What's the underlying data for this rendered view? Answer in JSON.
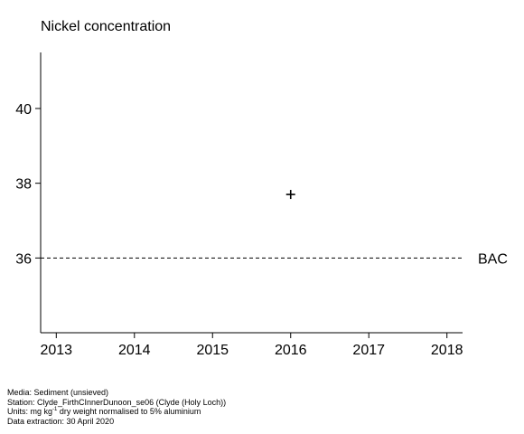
{
  "chart_data": {
    "type": "scatter",
    "title": "Nickel concentration",
    "xlabel": "",
    "ylabel": "",
    "xlim": [
      2012.8,
      2018.2
    ],
    "ylim": [
      34,
      41.5
    ],
    "x_ticks": [
      2013,
      2014,
      2015,
      2016,
      2017,
      2018
    ],
    "y_ticks": [
      36,
      38,
      40
    ],
    "points": [
      {
        "x": 2016,
        "y": 37.7,
        "marker": "plus"
      }
    ],
    "reference_lines": [
      {
        "label": "BAC",
        "y": 36,
        "style": "dashed"
      }
    ],
    "grid": false,
    "legend": "none"
  },
  "footer": {
    "media": "Media: Sediment (unsieved)",
    "station": "Station: Clyde_FirthCInnerDunoon_se06 (Clyde (Holy Loch))",
    "units_prefix": "Units:  mg kg",
    "units_exp": "-1",
    "units_suffix": " dry weight normalised to 5% aluminium",
    "extraction": "Data extraction: 30 April 2020"
  }
}
